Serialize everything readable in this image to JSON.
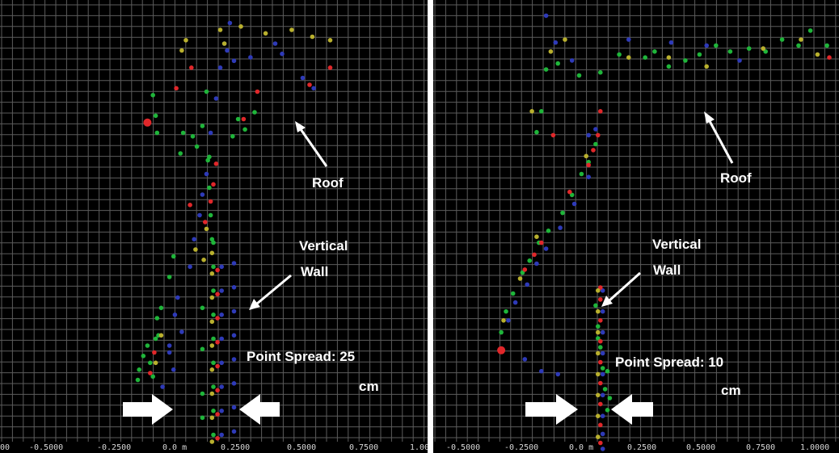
{
  "figure": {
    "colors": {
      "background": "#000000",
      "grid": "#5c5c5c",
      "green": "#1fb53a",
      "blue": "#2e3ab8",
      "red": "#e0272a",
      "yellow": "#b9b02e",
      "annotation": "#ffffff"
    }
  },
  "chart_data": [
    {
      "type": "scatter",
      "title": "",
      "xlabel": "",
      "ylabel": "",
      "grid": true,
      "xlim": [
        -0.5,
        1.0
      ],
      "x_tick_labels": [
        "00",
        "-0.5000",
        "-0.2500",
        "0.0 m",
        "0.2500",
        "0.5000",
        "0.7500",
        "1.00"
      ],
      "annotations": {
        "roof": "Roof",
        "wall_line1": "Vertical",
        "wall_line2": "Wall",
        "spread_line1": "Point Spread: 25",
        "spread_line2": "cm"
      },
      "point_spread_cm": 25,
      "series": [
        {
          "color_name": "green",
          "x": [
            -0.45,
            -0.44,
            -0.41,
            -0.38,
            -0.36,
            -0.34,
            -0.32,
            -0.31,
            -0.3,
            -0.28,
            -0.22,
            -0.19,
            -0.14,
            -0.12,
            -0.05,
            -0.02,
            0.02,
            0.05,
            0.07,
            0.1,
            0.1,
            0.1,
            0.1,
            0.1,
            0.1,
            0.1,
            0.1,
            0.1,
            0.02,
            0.02,
            0.02,
            0.02,
            0.06,
            0.07,
            0.08,
            0.09,
            0.24,
            0.28,
            0.33,
            0.4,
            -0.34,
            -0.32,
            -0.31
          ],
          "y": [
            0.14,
            0.17,
            0.21,
            0.24,
            0.19,
            0.15,
            0.26,
            0.32,
            0.27,
            0.35,
            0.44,
            0.5,
            0.8,
            0.86,
            0.85,
            0.82,
            0.88,
            0.98,
            0.79,
            0.54,
            0.47,
            0.4,
            0.33,
            0.26,
            0.19,
            0.12,
            0.05,
            -0.02,
            0.35,
            0.23,
            0.1,
            0.03,
            0.78,
            0.7,
            0.62,
            0.55,
            0.85,
            0.9,
            0.87,
            0.92,
            0.97,
            0.91,
            0.86
          ]
        },
        {
          "color_name": "blue",
          "x": [
            -0.3,
            -0.27,
            -0.22,
            -0.18,
            -0.16,
            -0.07,
            -0.04,
            0.0,
            0.02,
            0.05,
            0.08,
            0.12,
            0.15,
            0.18,
            0.2,
            0.22,
            0.25,
            0.25,
            0.25,
            0.25,
            0.25,
            0.25,
            0.25,
            0.25,
            0.25,
            0.16,
            0.16,
            0.16,
            0.16,
            0.16,
            0.16,
            0.16,
            0.16,
            -0.22,
            -0.19,
            -0.13,
            0.25,
            0.37,
            0.55,
            0.6,
            0.75,
            0.83
          ],
          "y": [
            0.05,
            0.12,
            0.24,
            0.33,
            0.38,
            0.47,
            0.55,
            0.62,
            0.68,
            0.74,
            0.86,
            0.96,
            1.05,
            1.12,
            1.1,
            1.18,
            0.48,
            0.41,
            0.34,
            0.27,
            0.2,
            0.13,
            0.06,
            -0.01,
            -0.08,
            0.47,
            0.4,
            0.33,
            0.26,
            0.19,
            0.12,
            0.05,
            -0.02,
            0.22,
            0.17,
            0.28,
            1.07,
            1.08,
            1.12,
            1.09,
            1.02,
            0.99
          ]
        },
        {
          "color_name": "red",
          "x": [
            -0.36,
            -0.33,
            -0.17,
            -0.06,
            0.04,
            0.08,
            0.1,
            0.12,
            0.13,
            0.13,
            0.13,
            0.13,
            0.13,
            0.13,
            0.13,
            0.13,
            0.13,
            -0.07,
            0.32,
            0.42,
            0.8,
            0.95
          ],
          "y": [
            0.16,
            0.22,
            0.99,
            1.05,
            0.6,
            0.66,
            0.71,
            0.77,
            0.46,
            0.39,
            0.32,
            0.25,
            0.18,
            0.11,
            0.04,
            -0.03,
            -0.09,
            0.65,
            0.9,
            0.98,
            1.0,
            1.05
          ],
          "big": [
            -0.38,
            0.89
          ]
        },
        {
          "color_name": "yellow",
          "x": [
            -0.32,
            -0.28,
            -0.13,
            -0.1,
            -0.03,
            0.03,
            0.05,
            0.09,
            0.09,
            0.09,
            0.09,
            0.09,
            0.09,
            0.09,
            0.09,
            0.09,
            0.09,
            0.15,
            0.18,
            0.3,
            0.48,
            0.67,
            0.82,
            0.95
          ],
          "y": [
            0.19,
            0.27,
            1.1,
            1.13,
            0.52,
            0.49,
            0.58,
            0.45,
            0.38,
            0.31,
            0.24,
            0.17,
            0.1,
            0.03,
            -0.04,
            -0.1,
            0.51,
            1.16,
            1.12,
            1.17,
            1.15,
            1.16,
            1.14,
            1.13
          ]
        }
      ]
    },
    {
      "type": "scatter",
      "title": "",
      "xlabel": "",
      "ylabel": "",
      "grid": true,
      "xlim": [
        -0.5,
        1.0
      ],
      "x_tick_labels": [
        "-0.5000",
        "-0.2500",
        "0.0 m",
        "0.2500",
        "0.5000",
        "0.7500",
        "1.0000"
      ],
      "annotations": {
        "roof": "Roof",
        "wall_line1": "Vertical",
        "wall_line2": "Wall",
        "spread_line1": "Point Spread: 10",
        "spread_line2": "cm"
      },
      "point_spread_cm": 10,
      "series": [
        {
          "color_name": "green",
          "x": [
            -0.39,
            -0.37,
            -0.34,
            -0.3,
            -0.27,
            -0.23,
            -0.19,
            -0.13,
            -0.09,
            -0.05,
            -0.02,
            0.01,
            -0.2,
            -0.15,
            -0.06,
            0.03,
            0.11,
            0.22,
            0.26,
            0.32,
            0.39,
            0.45,
            0.52,
            0.58,
            0.66,
            0.73,
            0.8,
            0.87,
            0.92,
            0.99,
            0.01,
            0.02,
            0.03,
            0.04,
            0.05,
            0.06,
            0.02,
            0.06,
            0.07,
            -0.22,
            -0.24
          ],
          "y": [
            0.32,
            0.39,
            0.45,
            0.52,
            0.56,
            0.62,
            0.66,
            0.72,
            0.78,
            0.85,
            0.89,
            0.95,
            1.2,
            1.22,
            1.18,
            1.19,
            1.25,
            1.24,
            1.26,
            1.21,
            1.23,
            1.25,
            1.28,
            1.26,
            1.27,
            1.26,
            1.3,
            1.28,
            1.33,
            1.28,
            0.41,
            0.34,
            0.27,
            0.2,
            0.13,
            0.06,
            0.3,
            0.19,
            0.1,
            1.06,
            0.99
          ]
        },
        {
          "color_name": "blue",
          "x": [
            -0.36,
            -0.33,
            -0.28,
            -0.24,
            -0.2,
            -0.14,
            -0.08,
            -0.02,
            -0.09,
            -0.16,
            -0.2,
            0.01,
            0.04,
            0.04,
            0.04,
            0.04,
            0.04,
            0.04,
            0.04,
            0.04,
            0.04,
            -0.02,
            0.15,
            0.33,
            0.48,
            0.62,
            -0.29,
            -0.22,
            -0.15
          ],
          "y": [
            0.36,
            0.42,
            0.48,
            0.55,
            0.6,
            0.67,
            0.75,
            0.84,
            1.23,
            1.29,
            1.38,
            1.0,
            0.46,
            0.39,
            0.32,
            0.25,
            0.18,
            0.11,
            0.04,
            -0.02,
            -0.07,
            0.98,
            1.3,
            1.29,
            1.28,
            1.23,
            0.23,
            0.19,
            0.18
          ]
        },
        {
          "color_name": "red",
          "x": [
            -0.29,
            -0.25,
            -0.22,
            -0.1,
            -0.02,
            0.0,
            0.02,
            0.03,
            0.03,
            0.03,
            0.03,
            0.03,
            0.03,
            0.03,
            0.03,
            0.03,
            0.03,
            -0.17,
            1.0
          ],
          "y": [
            0.53,
            0.58,
            0.62,
            0.79,
            0.88,
            0.93,
            0.98,
            1.06,
            0.43,
            0.36,
            0.29,
            0.22,
            0.15,
            0.08,
            0.01,
            -0.05,
            0.47,
            0.98,
            1.24
          ],
          "big": [
            -0.39,
            0.26
          ]
        },
        {
          "color_name": "yellow",
          "x": [
            -0.38,
            -0.31,
            -0.24,
            -0.18,
            -0.12,
            -0.03,
            0.02,
            0.02,
            0.02,
            0.02,
            0.02,
            0.02,
            0.02,
            0.02,
            0.15,
            0.32,
            0.48,
            0.72,
            0.88,
            0.95,
            -0.26
          ],
          "y": [
            0.36,
            0.5,
            0.64,
            1.26,
            1.3,
            0.91,
            0.46,
            0.39,
            0.32,
            0.25,
            0.18,
            0.11,
            0.04,
            -0.03,
            1.24,
            1.24,
            1.21,
            1.27,
            1.3,
            1.25,
            1.06
          ]
        }
      ]
    }
  ]
}
